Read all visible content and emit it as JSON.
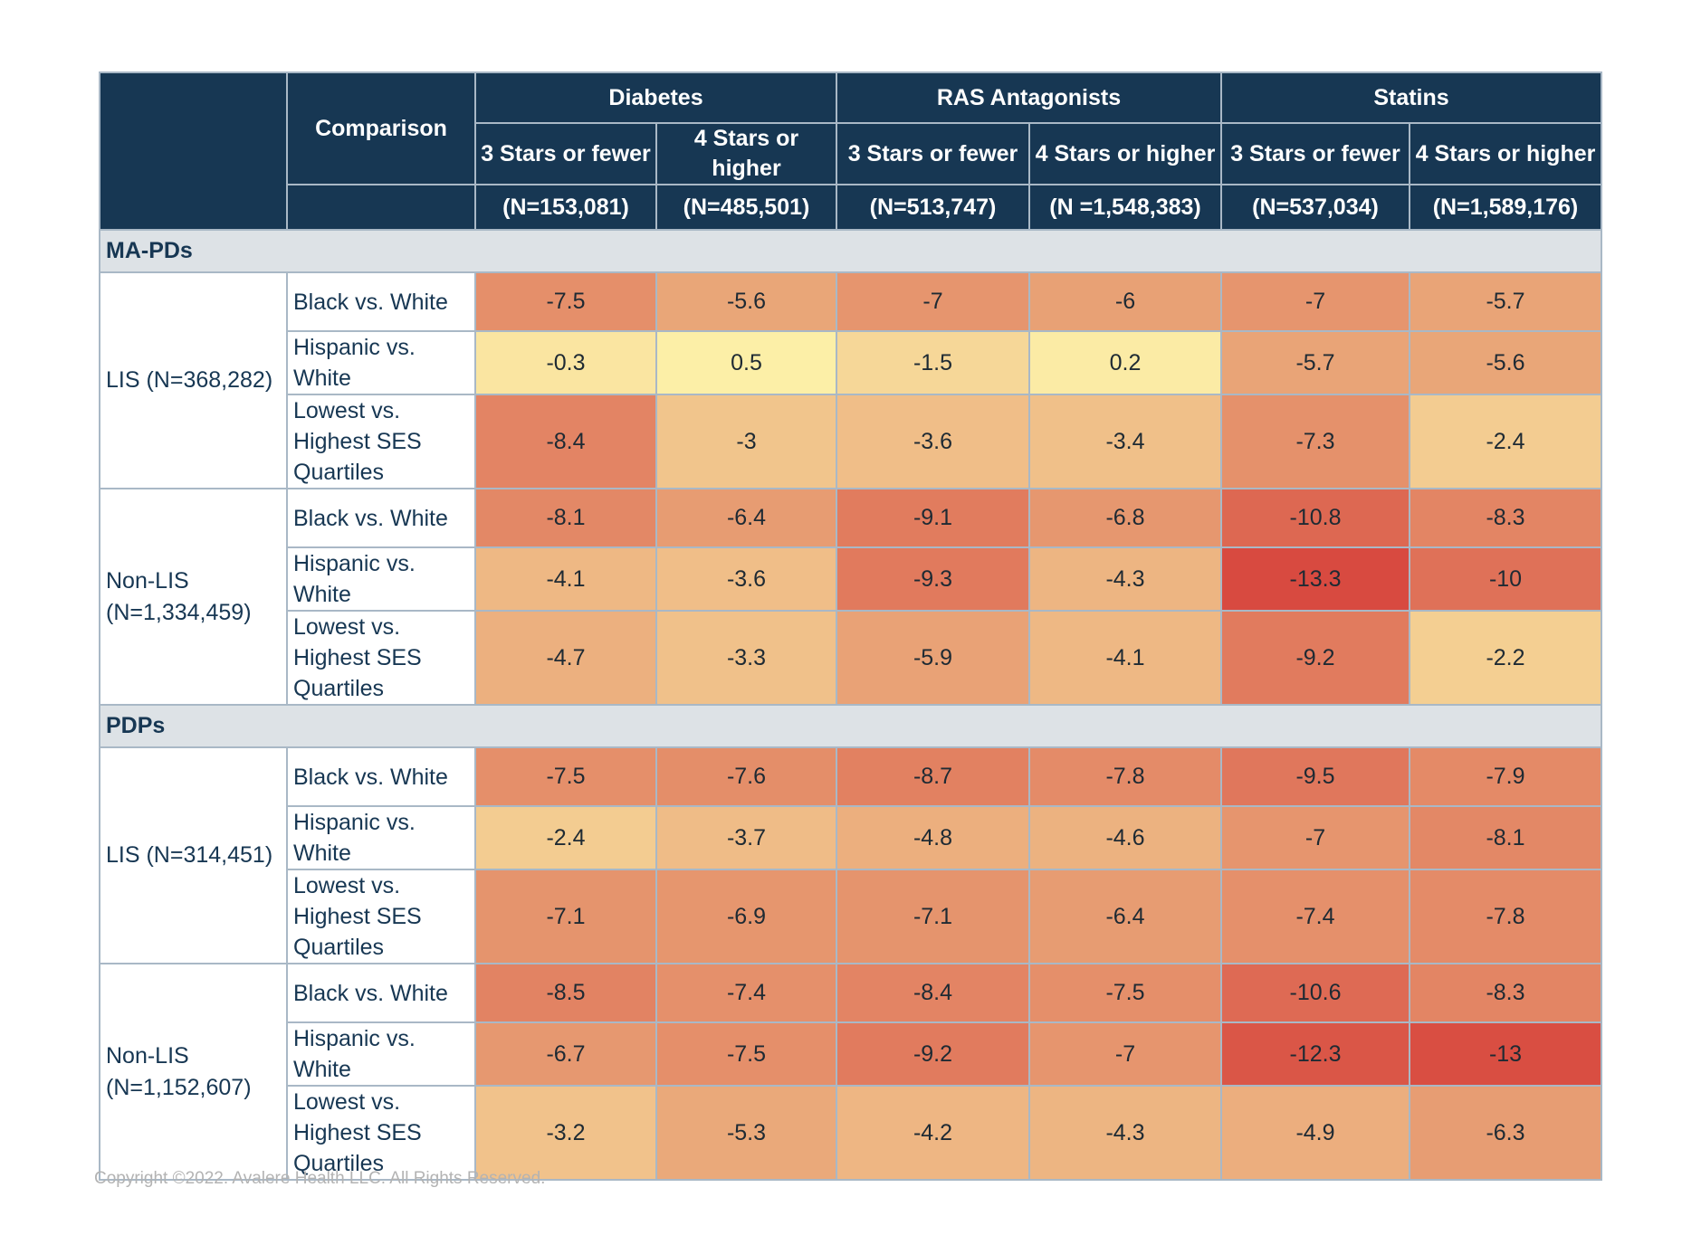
{
  "chart_data": {
    "type": "table",
    "title": "",
    "header": {
      "comparison_label": "Comparison",
      "groups": [
        {
          "name": "Diabetes",
          "columns": [
            {
              "label": "3 Stars or fewer",
              "n": "(N=153,081)"
            },
            {
              "label": "4 Stars or higher",
              "n": "(N=485,501)"
            }
          ]
        },
        {
          "name": "RAS Antagonists",
          "columns": [
            {
              "label": "3 Stars or fewer",
              "n": "(N=513,747)"
            },
            {
              "label": "4 Stars or higher",
              "n": "(N =1,548,383)"
            }
          ]
        },
        {
          "name": "Statins",
          "columns": [
            {
              "label": "3 Stars or fewer",
              "n": "(N=537,034)"
            },
            {
              "label": "4 Stars or higher",
              "n": "(N=1,589,176)"
            }
          ]
        }
      ]
    },
    "sections": [
      {
        "name": "MA-PDs",
        "groups": [
          {
            "label": "LIS (N=368,282)",
            "rows": [
              {
                "comparison": "Black vs. White",
                "values": [
                  -7.5,
                  -5.6,
                  -7,
                  -6,
                  -7,
                  -5.7
                ]
              },
              {
                "comparison": "Hispanic vs. White",
                "values": [
                  -0.3,
                  0.5,
                  -1.5,
                  0.2,
                  -5.7,
                  -5.6
                ]
              },
              {
                "comparison": "Lowest vs. Highest SES Quartiles",
                "values": [
                  -8.4,
                  -3,
                  -3.6,
                  -3.4,
                  -7.3,
                  -2.4
                ]
              }
            ]
          },
          {
            "label": "Non-LIS (N=1,334,459)",
            "rows": [
              {
                "comparison": "Black vs. White",
                "values": [
                  -8.1,
                  -6.4,
                  -9.1,
                  -6.8,
                  -10.8,
                  -8.3
                ]
              },
              {
                "comparison": "Hispanic vs. White",
                "values": [
                  -4.1,
                  -3.6,
                  -9.3,
                  -4.3,
                  -13.3,
                  -10
                ]
              },
              {
                "comparison": "Lowest vs. Highest SES Quartiles",
                "values": [
                  -4.7,
                  -3.3,
                  -5.9,
                  -4.1,
                  -9.2,
                  -2.2
                ]
              }
            ]
          }
        ]
      },
      {
        "name": "PDPs",
        "groups": [
          {
            "label": "LIS (N=314,451)",
            "rows": [
              {
                "comparison": "Black vs. White",
                "values": [
                  -7.5,
                  -7.6,
                  -8.7,
                  -7.8,
                  -9.5,
                  -7.9
                ]
              },
              {
                "comparison": "Hispanic vs. White",
                "values": [
                  -2.4,
                  -3.7,
                  -4.8,
                  -4.6,
                  -7,
                  -8.1
                ]
              },
              {
                "comparison": "Lowest vs. Highest SES Quartiles",
                "values": [
                  -7.1,
                  -6.9,
                  -7.1,
                  -6.4,
                  -7.4,
                  -7.8
                ]
              }
            ]
          },
          {
            "label": "Non-LIS (N=1,152,607)",
            "rows": [
              {
                "comparison": "Black vs. White",
                "values": [
                  -8.5,
                  -7.4,
                  -8.4,
                  -7.5,
                  -10.6,
                  -8.3
                ]
              },
              {
                "comparison": "Hispanic vs. White",
                "values": [
                  -6.7,
                  -7.5,
                  -9.2,
                  -7,
                  -12.3,
                  -13
                ]
              },
              {
                "comparison": "Lowest vs. Highest SES Quartiles",
                "values": [
                  -3.2,
                  -5.3,
                  -4.2,
                  -4.3,
                  -4.9,
                  -6.3
                ]
              }
            ]
          }
        ]
      }
    ],
    "color_scale": {
      "min": -13.3,
      "max": 0.5,
      "low_color": "#d84a40",
      "mid_color": "#e79c72",
      "high_color": "#fcefa7"
    }
  },
  "footer": {
    "copyright": "Copyright ©2022. Avalere Health LLC. All Rights Reserved."
  }
}
